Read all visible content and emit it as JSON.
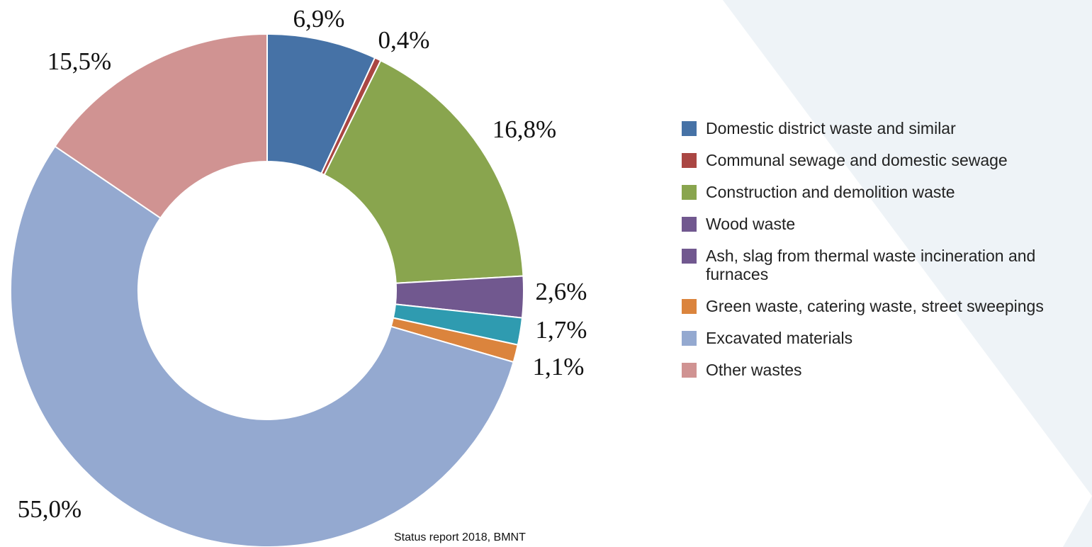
{
  "chart_data": {
    "type": "donut",
    "categories": [
      "Domestic district waste and similar",
      "Communal sewage and domestic sewage",
      "Construction and demolition waste",
      "Wood waste",
      "Ash, slag from thermal waste incineration and furnaces",
      "Green waste, catering waste, street sweepings",
      "Excavated materials",
      "Other wastes"
    ],
    "values": [
      6.9,
      0.4,
      16.8,
      2.6,
      1.7,
      1.1,
      55.0,
      15.5
    ],
    "value_labels": [
      "6,9%",
      "0,4%",
      "16,8%",
      "2,6%",
      "1,7%",
      "1,1%",
      "55,0%",
      "15,5%"
    ],
    "colors": [
      "#4672a6",
      "#aa4643",
      "#89a54e",
      "#71588f",
      "#2f9bb0",
      "#db843d",
      "#94a9d0",
      "#d09392"
    ],
    "legend_colors": [
      "#4672a6",
      "#aa4643",
      "#89a54e",
      "#71588f",
      "#71588f",
      "#db843d",
      "#94a9d0",
      "#d09392"
    ],
    "source": "Status report 2018, BMNT"
  }
}
